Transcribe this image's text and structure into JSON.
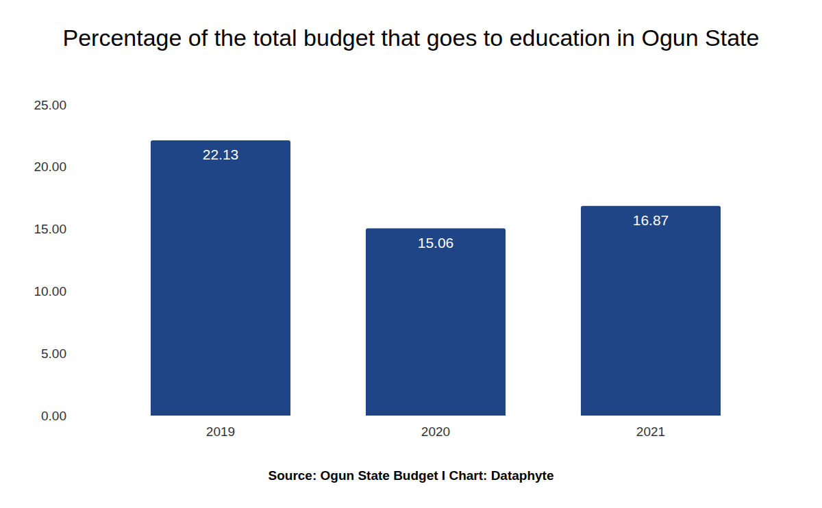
{
  "chart_data": {
    "type": "bar",
    "title": "Percentage of the total budget that goes to education in Ogun State",
    "source": "Source: Ogun State Budget I Chart: Dataphyte",
    "categories": [
      "2019",
      "2020",
      "2021"
    ],
    "values": [
      22.13,
      15.06,
      16.87
    ],
    "color": "#1f4587",
    "ylim": [
      0,
      25
    ],
    "yticks": [
      {
        "value": 0,
        "label": "0.00"
      },
      {
        "value": 5,
        "label": "5.00"
      },
      {
        "value": 10,
        "label": "10.00"
      },
      {
        "value": 15,
        "label": "15.00"
      },
      {
        "value": 20,
        "label": "20.00"
      },
      {
        "value": 25,
        "label": "25.00"
      }
    ],
    "grid": false,
    "data_labels": true
  }
}
